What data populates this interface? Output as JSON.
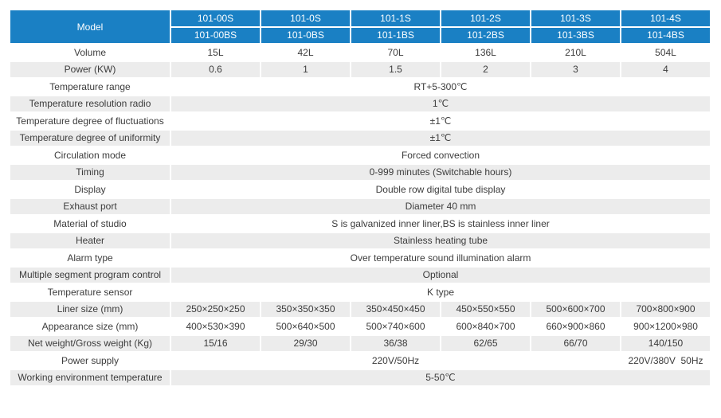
{
  "colors": {
    "header_blue": "#1a80c4",
    "row_shade_gray": "#ececec",
    "header_text": "#ffffff",
    "body_text": "#3c3c3c",
    "cell_gap": "#ffffff"
  },
  "table": {
    "model_label": "Model",
    "model_columns": [
      {
        "top": "101-00S",
        "bottom": "101-00BS"
      },
      {
        "top": "101-0S",
        "bottom": "101-0BS"
      },
      {
        "top": "101-1S",
        "bottom": "101-1BS"
      },
      {
        "top": "101-2S",
        "bottom": "101-2BS"
      },
      {
        "top": "101-3S",
        "bottom": "101-3BS"
      },
      {
        "top": "101-4S",
        "bottom": "101-4BS"
      }
    ],
    "rows": [
      {
        "label": "Volume",
        "shade": false,
        "values": [
          "15L",
          "42L",
          "70L",
          "136L",
          "210L",
          "504L"
        ]
      },
      {
        "label": "Power (KW)",
        "shade": true,
        "values": [
          "0.6",
          "1",
          "1.5",
          "2",
          "3",
          "4"
        ]
      },
      {
        "label": "Temperature range",
        "shade": false,
        "value": "RT+5-300℃"
      },
      {
        "label": "Temperature resolution radio",
        "shade": true,
        "value": "1℃"
      },
      {
        "label": "Temperature degree of fluctuations",
        "shade": false,
        "value": "±1℃"
      },
      {
        "label": "Temperature degree of uniformity",
        "shade": true,
        "value": "±1℃"
      },
      {
        "label": "Circulation mode",
        "shade": false,
        "value": "Forced convection"
      },
      {
        "label": "Timing",
        "shade": true,
        "value": "0-999 minutes (Switchable hours)"
      },
      {
        "label": "Display",
        "shade": false,
        "value": "Double row digital tube display"
      },
      {
        "label": "Exhaust port",
        "shade": true,
        "value": "Diameter 40 mm"
      },
      {
        "label": "Material of studio",
        "shade": false,
        "value": "S is galvanized inner liner,BS is stainless inner liner"
      },
      {
        "label": "Heater",
        "shade": true,
        "value": "Stainless heating tube"
      },
      {
        "label": "Alarm type",
        "shade": false,
        "value": "Over temperature sound illumination alarm"
      },
      {
        "label": "Multiple segment program control",
        "shade": true,
        "value": "Optional"
      },
      {
        "label": "Temperature sensor",
        "shade": false,
        "value": "K type"
      },
      {
        "label": "Liner size (mm)",
        "shade": true,
        "values": [
          "250×250×250",
          "350×350×350",
          "350×450×450",
          "450×550×550",
          "500×600×700",
          "700×800×900"
        ]
      },
      {
        "label": "Appearance size (mm)",
        "shade": false,
        "values": [
          "400×530×390",
          "500×640×500",
          "500×740×600",
          "600×840×700",
          "660×900×860",
          "900×1200×980"
        ]
      },
      {
        "label": "Net weight/Gross weight (Kg)",
        "shade": true,
        "values": [
          "15/16",
          "29/30",
          "36/38",
          "62/65",
          "66/70",
          "140/150"
        ]
      },
      {
        "label": "Power supply",
        "shade": false,
        "cells": [
          {
            "value": "220V/50Hz",
            "colspan": 5
          },
          {
            "value": "220V/380V  50Hz",
            "colspan": 1
          }
        ]
      },
      {
        "label": "Working environment temperature",
        "shade": true,
        "value": "5-50℃"
      }
    ]
  }
}
